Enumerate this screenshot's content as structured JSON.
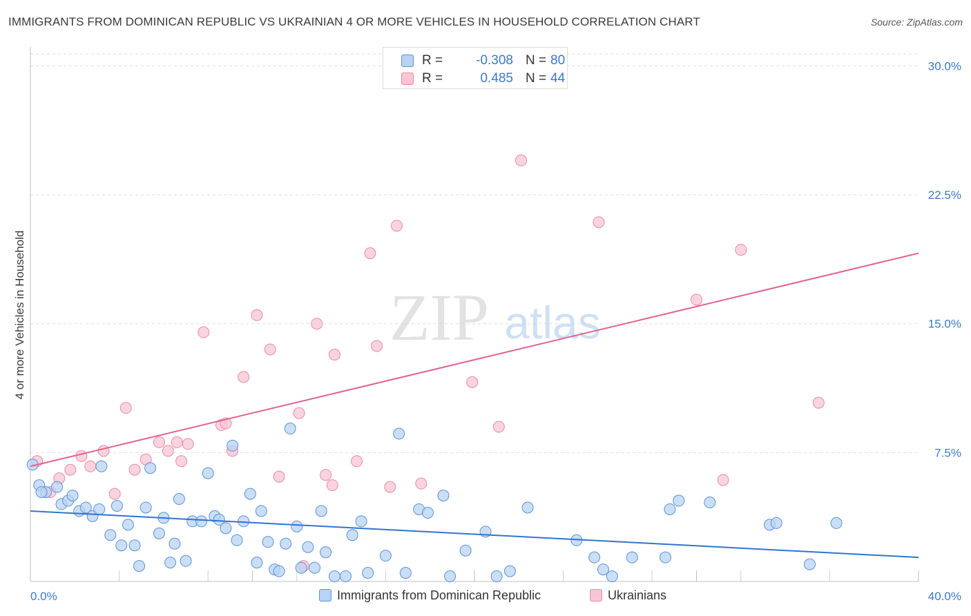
{
  "header": {
    "title": "IMMIGRANTS FROM DOMINICAN REPUBLIC VS UKRAINIAN 4 OR MORE VEHICLES IN HOUSEHOLD CORRELATION CHART",
    "source": "Source: ZipAtlas.com"
  },
  "watermark": {
    "zip": "ZIP",
    "atlas": "atlas"
  },
  "stats": {
    "rows": [
      {
        "r_label": "R =",
        "r_value": "-0.308",
        "n_label": "N =",
        "n_value": "80"
      },
      {
        "r_label": "R =",
        "r_value": "0.485",
        "n_label": "N =",
        "n_value": "44"
      }
    ]
  },
  "legend": {
    "items": [
      {
        "label": "Immigrants from Dominican Republic"
      },
      {
        "label": "Ukrainians"
      }
    ]
  },
  "colors": {
    "blue_fill": "#b8d3f3",
    "blue_stroke": "#5a92d8",
    "blue_line": "#2f74cf",
    "pink_fill": "#f7c6d4",
    "pink_stroke": "#e88aa8",
    "pink_line": "#e0628c",
    "tick_text": "#3a78c9",
    "grid": "#dddddd"
  },
  "chart_data": {
    "type": "scatter",
    "title": "IMMIGRANTS FROM DOMINICAN REPUBLIC VS UKRAINIAN 4 OR MORE VEHICLES IN HOUSEHOLD CORRELATION CHART",
    "xlabel": "",
    "ylabel": "4 or more Vehicles in Household",
    "xlim": [
      0,
      40
    ],
    "ylim": [
      0,
      30.7
    ],
    "x_ticks": [
      0,
      10,
      20,
      30,
      40
    ],
    "x_tick_labels": [
      "0.0%",
      "",
      "",
      "",
      "40.0%"
    ],
    "x_minor_ticks": [
      4,
      8,
      12,
      16,
      24,
      28,
      32,
      36
    ],
    "y_ticks": [
      7.5,
      15,
      22.5,
      30
    ],
    "y_tick_labels": [
      "7.5%",
      "15.0%",
      "22.5%",
      "30.0%"
    ],
    "grid": true,
    "series": [
      {
        "name": "Immigrants from Dominican Republic",
        "color": "blue",
        "trendline": {
          "x": [
            0,
            40
          ],
          "y": [
            4.1,
            1.4
          ]
        },
        "points": [
          [
            0.1,
            6.8
          ],
          [
            0.4,
            5.6
          ],
          [
            0.7,
            5.2
          ],
          [
            1.2,
            5.5
          ],
          [
            1.4,
            4.5
          ],
          [
            1.7,
            4.7
          ],
          [
            1.9,
            5.0
          ],
          [
            2.2,
            4.1
          ],
          [
            2.5,
            4.3
          ],
          [
            2.8,
            3.8
          ],
          [
            3.1,
            4.2
          ],
          [
            3.2,
            6.7
          ],
          [
            3.6,
            2.7
          ],
          [
            3.9,
            4.4
          ],
          [
            4.1,
            2.1
          ],
          [
            4.4,
            3.3
          ],
          [
            4.7,
            2.1
          ],
          [
            4.9,
            0.9
          ],
          [
            5.2,
            4.3
          ],
          [
            5.4,
            6.6
          ],
          [
            5.8,
            2.8
          ],
          [
            6.0,
            3.7
          ],
          [
            6.3,
            1.1
          ],
          [
            6.5,
            2.2
          ],
          [
            6.7,
            4.8
          ],
          [
            7.0,
            1.2
          ],
          [
            7.3,
            3.5
          ],
          [
            7.7,
            3.5
          ],
          [
            8.0,
            6.3
          ],
          [
            8.3,
            3.8
          ],
          [
            8.5,
            3.6
          ],
          [
            8.8,
            3.1
          ],
          [
            9.1,
            7.9
          ],
          [
            9.3,
            2.4
          ],
          [
            9.6,
            3.5
          ],
          [
            9.9,
            5.1
          ],
          [
            10.2,
            1.1
          ],
          [
            10.4,
            4.1
          ],
          [
            10.7,
            2.3
          ],
          [
            11.0,
            0.7
          ],
          [
            11.2,
            0.6
          ],
          [
            11.5,
            2.2
          ],
          [
            11.7,
            8.9
          ],
          [
            12.0,
            3.2
          ],
          [
            12.2,
            0.8
          ],
          [
            12.5,
            2.0
          ],
          [
            12.8,
            0.8
          ],
          [
            13.1,
            4.1
          ],
          [
            13.3,
            1.7
          ],
          [
            13.7,
            0.3
          ],
          [
            14.2,
            0.3
          ],
          [
            14.5,
            2.7
          ],
          [
            14.9,
            3.5
          ],
          [
            15.2,
            0.5
          ],
          [
            16.0,
            1.5
          ],
          [
            16.6,
            8.6
          ],
          [
            16.9,
            0.5
          ],
          [
            17.5,
            4.2
          ],
          [
            17.9,
            4.0
          ],
          [
            18.6,
            5.0
          ],
          [
            18.9,
            0.3
          ],
          [
            19.6,
            1.8
          ],
          [
            20.5,
            2.9
          ],
          [
            21.0,
            0.3
          ],
          [
            21.6,
            0.6
          ],
          [
            22.4,
            4.3
          ],
          [
            24.6,
            2.4
          ],
          [
            25.4,
            1.4
          ],
          [
            25.8,
            0.7
          ],
          [
            26.2,
            0.3
          ],
          [
            27.1,
            1.4
          ],
          [
            28.6,
            1.4
          ],
          [
            28.8,
            4.2
          ],
          [
            29.2,
            4.7
          ],
          [
            30.6,
            4.6
          ],
          [
            33.3,
            3.3
          ],
          [
            33.6,
            3.4
          ],
          [
            35.1,
            1.0
          ],
          [
            36.3,
            3.4
          ],
          [
            0.5,
            5.2
          ]
        ]
      },
      {
        "name": "Ukrainians",
        "color": "pink",
        "trendline": {
          "x": [
            0,
            40
          ],
          "y": [
            6.7,
            19.1
          ]
        },
        "points": [
          [
            0.3,
            7.0
          ],
          [
            0.9,
            5.2
          ],
          [
            1.3,
            6.0
          ],
          [
            1.8,
            6.5
          ],
          [
            2.3,
            7.3
          ],
          [
            2.7,
            6.7
          ],
          [
            3.3,
            7.6
          ],
          [
            3.8,
            5.1
          ],
          [
            4.3,
            10.1
          ],
          [
            4.7,
            6.5
          ],
          [
            5.2,
            7.1
          ],
          [
            5.8,
            8.1
          ],
          [
            6.2,
            7.6
          ],
          [
            6.8,
            7.0
          ],
          [
            7.1,
            8.0
          ],
          [
            7.8,
            14.5
          ],
          [
            8.6,
            9.1
          ],
          [
            8.8,
            9.2
          ],
          [
            9.1,
            7.6
          ],
          [
            9.6,
            11.9
          ],
          [
            10.2,
            15.5
          ],
          [
            10.8,
            13.5
          ],
          [
            11.2,
            6.1
          ],
          [
            12.1,
            9.8
          ],
          [
            12.9,
            15.0
          ],
          [
            13.3,
            6.2
          ],
          [
            13.6,
            5.6
          ],
          [
            13.7,
            13.2
          ],
          [
            14.7,
            7.0
          ],
          [
            15.3,
            19.1
          ],
          [
            15.6,
            13.7
          ],
          [
            16.2,
            5.5
          ],
          [
            16.5,
            20.7
          ],
          [
            17.6,
            5.7
          ],
          [
            19.9,
            11.6
          ],
          [
            21.1,
            9.0
          ],
          [
            22.1,
            24.5
          ],
          [
            25.6,
            20.9
          ],
          [
            30.0,
            16.4
          ],
          [
            31.2,
            5.9
          ],
          [
            32.0,
            19.3
          ],
          [
            35.5,
            10.4
          ],
          [
            12.3,
            0.9
          ],
          [
            6.6,
            8.1
          ]
        ]
      }
    ]
  }
}
